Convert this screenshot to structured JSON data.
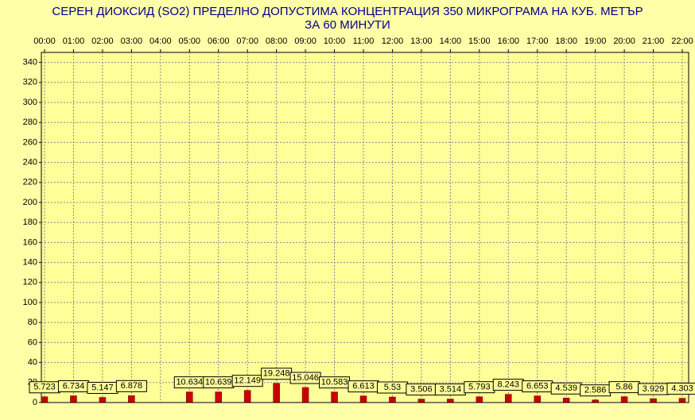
{
  "chart_data": {
    "type": "bar",
    "title": "СЕРЕН ДИОКСИД  (SO2)  ПРЕДЕЛНО ДОПУСТИМА КОНЦЕНТРАЦИЯ 350 МИКРОГРАМА  НА КУБ. МЕТЪР",
    "subtitle": "ЗА 60 МИНУТИ",
    "categories": [
      "00:00",
      "01:00",
      "02:00",
      "03:00",
      "04:00",
      "05:00",
      "06:00",
      "07:00",
      "08:00",
      "09:00",
      "10:00",
      "11:00",
      "12:00",
      "13:00",
      "14:00",
      "15:00",
      "16:00",
      "17:00",
      "18:00",
      "19:00",
      "20:00",
      "21:00",
      "22:00"
    ],
    "values": [
      5.723,
      6.734,
      5.147,
      6.878,
      null,
      10.634,
      10.639,
      12.149,
      19.248,
      15.046,
      10.583,
      6.613,
      5.53,
      3.506,
      3.514,
      5.793,
      8.243,
      6.653,
      4.539,
      2.586,
      5.86,
      3.929,
      4.303
    ],
    "color": "#cc0000",
    "ylim": [
      0,
      350
    ],
    "yticks": [
      0,
      20,
      40,
      60,
      80,
      100,
      120,
      140,
      160,
      180,
      200,
      220,
      240,
      260,
      280,
      300,
      320,
      340
    ],
    "grid": true
  }
}
